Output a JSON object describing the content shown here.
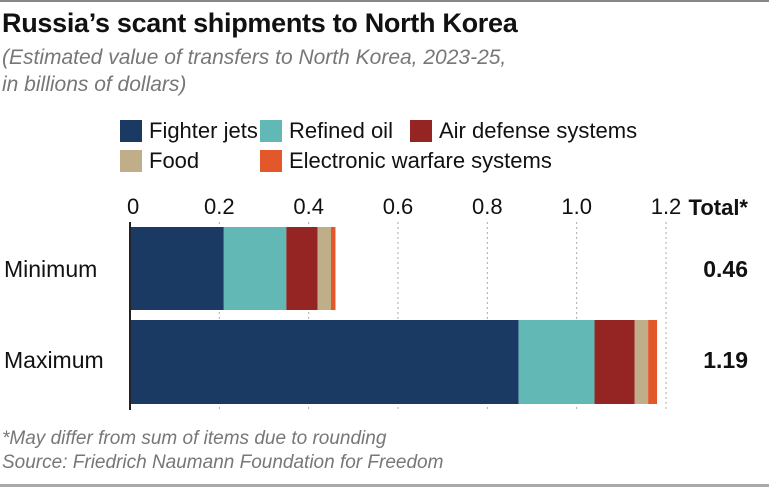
{
  "chart_data": {
    "type": "bar",
    "orientation": "horizontal",
    "stacked": true,
    "title": "Russia’s scant shipments to North Korea",
    "subtitle": "(Estimated value of transfers to North Korea, 2023-25, in billions of dollars)",
    "subtitle_lines": [
      "(Estimated value of transfers to North Korea, 2023-25,",
      "in billions of dollars)"
    ],
    "categories": [
      "Minimum",
      "Maximum"
    ],
    "series": [
      {
        "name": "Fighter jets",
        "color": "#1b3a63",
        "values": [
          0.21,
          0.87
        ]
      },
      {
        "name": "Refined oil",
        "color": "#62b8b5",
        "values": [
          0.14,
          0.17
        ]
      },
      {
        "name": "Air defense systems",
        "color": "#952523",
        "values": [
          0.07,
          0.09
        ]
      },
      {
        "name": "Food",
        "color": "#bfae88",
        "values": [
          0.03,
          0.03
        ]
      },
      {
        "name": "Electronic warfare systems",
        "color": "#e2582a",
        "values": [
          0.01,
          0.02
        ]
      }
    ],
    "totals": [
      "0.46",
      "1.19"
    ],
    "totals_header": "Total*",
    "xlim": [
      0,
      1.2
    ],
    "xticks": [
      0,
      0.2,
      0.4,
      0.6,
      0.8,
      1.0,
      1.2
    ],
    "xtick_labels": [
      "0",
      "0.2",
      "0.4",
      "0.6",
      "0.8",
      "1.0",
      "1.2"
    ],
    "grid": "vertical dotted",
    "legend_position": "top",
    "xlabel": "",
    "ylabel": ""
  },
  "footer": {
    "note": "*May differ from sum of items due to rounding",
    "source": "Source: Friedrich Naumann Foundation for Freedom"
  }
}
